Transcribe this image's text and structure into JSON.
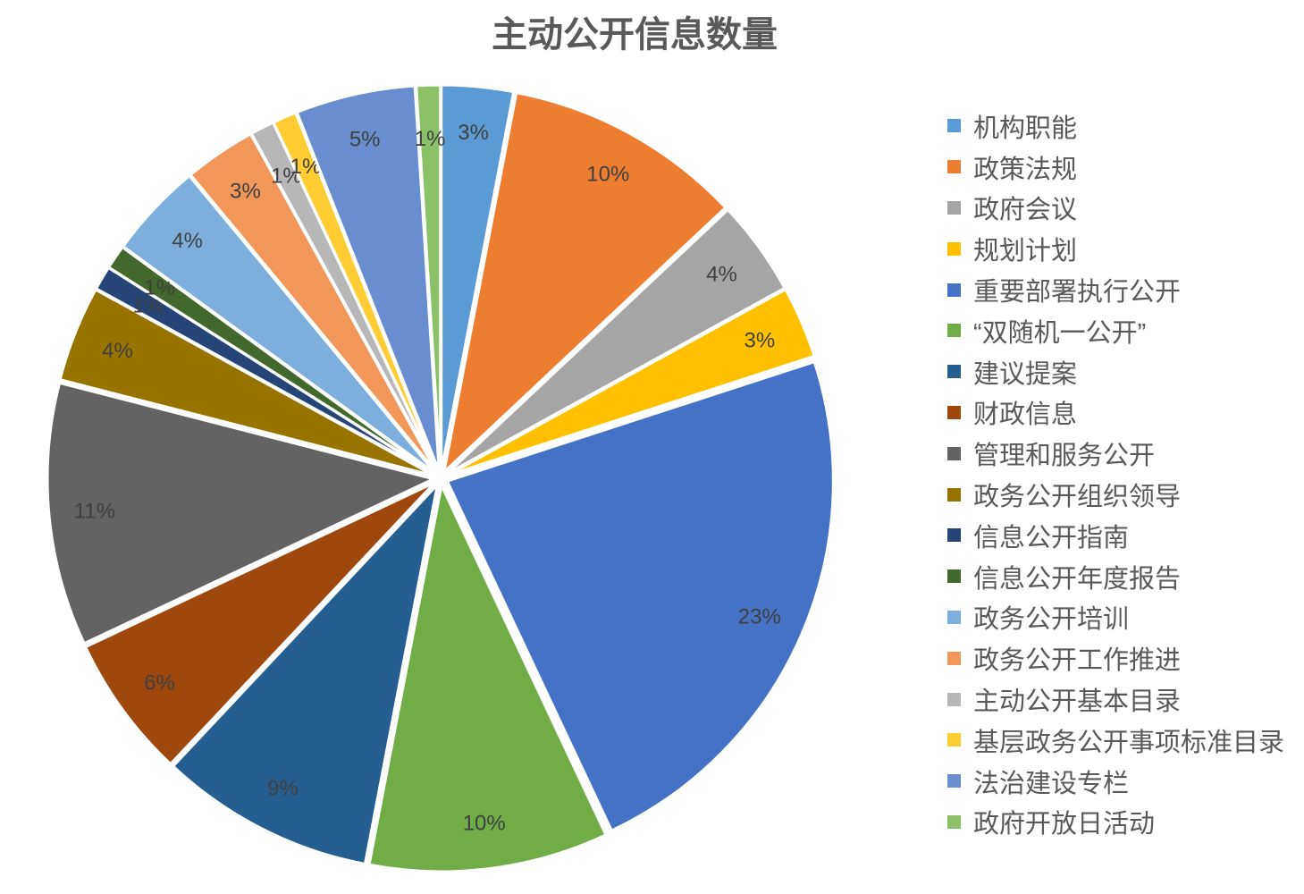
{
  "chart_data": {
    "type": "pie",
    "title": "主动公开信息数量",
    "legend_position": "right",
    "unit": "%",
    "slices": [
      {
        "label": "机构职能",
        "value": 3,
        "color": "#5B9BD5"
      },
      {
        "label": "政策法规",
        "value": 10,
        "color": "#ED7D31"
      },
      {
        "label": "政府会议",
        "value": 4,
        "color": "#A5A5A5"
      },
      {
        "label": "规划计划",
        "value": 3,
        "color": "#FFC000"
      },
      {
        "label": "重要部署执行公开",
        "value": 23,
        "color": "#4472C4"
      },
      {
        "label": "“双随机一公开”",
        "value": 10,
        "color": "#70AD47"
      },
      {
        "label": "建议提案",
        "value": 9,
        "color": "#255E91"
      },
      {
        "label": "财政信息",
        "value": 6,
        "color": "#9E480E"
      },
      {
        "label": "管理和服务公开",
        "value": 11,
        "color": "#636363"
      },
      {
        "label": "政务公开组织领导",
        "value": 4,
        "color": "#997300"
      },
      {
        "label": "信息公开指南",
        "value": 1,
        "color": "#264478"
      },
      {
        "label": "信息公开年度报告",
        "value": 1,
        "color": "#43682B"
      },
      {
        "label": "政务公开培训",
        "value": 4,
        "color": "#7CAFDD"
      },
      {
        "label": "政务公开工作推进",
        "value": 3,
        "color": "#F1975A"
      },
      {
        "label": "主动公开基本目录",
        "value": 1,
        "color": "#B7B7B7"
      },
      {
        "label": "基层政务公开事项标准目录",
        "value": 1,
        "color": "#FFCD33"
      },
      {
        "label": "法治建设专栏",
        "value": 5,
        "color": "#698ED0"
      },
      {
        "label": "政府开放日活动",
        "value": 1,
        "color": "#8CC168"
      }
    ]
  }
}
